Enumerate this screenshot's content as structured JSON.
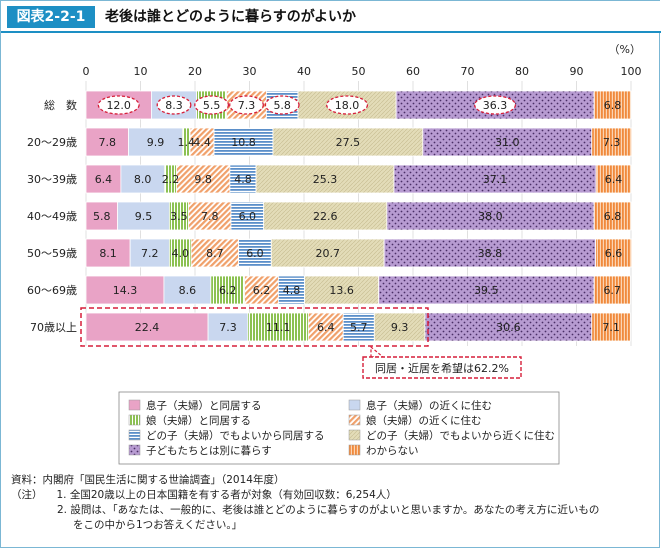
{
  "header": {
    "tag": "図表2-2-1",
    "title": "老後は誰とどのように暮らすのがよいか"
  },
  "chart_data": {
    "type": "bar",
    "orientation": "horizontal-stacked",
    "unit_label": "（%）",
    "xlim": [
      0,
      100
    ],
    "x_ticks": [
      "0",
      "10",
      "20",
      "30",
      "40",
      "50",
      "60",
      "70",
      "80",
      "90",
      "100"
    ],
    "categories": [
      "総　数",
      "20～29歳",
      "30～39歳",
      "40～49歳",
      "50～59歳",
      "60～69歳",
      "70歳以上"
    ],
    "series": [
      {
        "name": "息子（夫婦）と同居する",
        "color": "#e9a3c6",
        "pattern": "solid",
        "values": [
          12.0,
          7.8,
          6.4,
          5.8,
          8.1,
          14.3,
          22.4
        ]
      },
      {
        "name": "息子（夫婦）の近くに住む",
        "color": "#c9d7ef",
        "pattern": "solid",
        "values": [
          8.3,
          9.9,
          8.0,
          9.5,
          7.2,
          8.6,
          7.3
        ]
      },
      {
        "name": "娘（夫婦）と同居する",
        "color": "#8cc152",
        "pattern": "vstripe",
        "values": [
          5.5,
          1.4,
          2.2,
          3.5,
          4.0,
          6.2,
          11.1
        ]
      },
      {
        "name": "娘（夫婦）の近くに住む",
        "color": "#f0a06a",
        "pattern": "diag",
        "values": [
          7.3,
          4.4,
          9.8,
          7.8,
          8.7,
          6.2,
          6.4
        ]
      },
      {
        "name": "どの子（夫婦）でもよいから同居する",
        "color": "#5b8fc9",
        "pattern": "hstripe",
        "values": [
          5.8,
          10.8,
          4.8,
          6.0,
          6.0,
          4.8,
          5.7
        ]
      },
      {
        "name": "どの子（夫婦）でもよいから近くに住む",
        "color": "#e3dcb8",
        "pattern": "crosshatch",
        "values": [
          18.0,
          27.5,
          25.3,
          22.6,
          20.7,
          13.6,
          9.3
        ]
      },
      {
        "name": "子どもたちとは別に暮らす",
        "color": "#b79bd1",
        "pattern": "dots",
        "values": [
          36.3,
          31.0,
          37.1,
          38.0,
          38.8,
          39.5,
          30.6
        ]
      },
      {
        "name": "わからない",
        "color": "#f08a3c",
        "pattern": "vstripe-orange",
        "values": [
          6.8,
          7.3,
          6.4,
          6.8,
          6.6,
          6.7,
          7.1
        ]
      }
    ],
    "annotation": "同居・近居を希望は62.2%"
  },
  "notes": {
    "source": "資料：内閣府「国民生活に関する世論調査」（2014年度）",
    "note_label": "（注）",
    "note1": "1.  全国20歳以上の日本国籍を有する者が対象（有効回収数：6,254人）",
    "note2a": "2.  設問は、「あなたは、一般的に、老後は誰とどのように暮らすのがよいと思いますか。あなたの考え方に近いもの",
    "note2b": "をこの中から1つお答えください。」"
  }
}
